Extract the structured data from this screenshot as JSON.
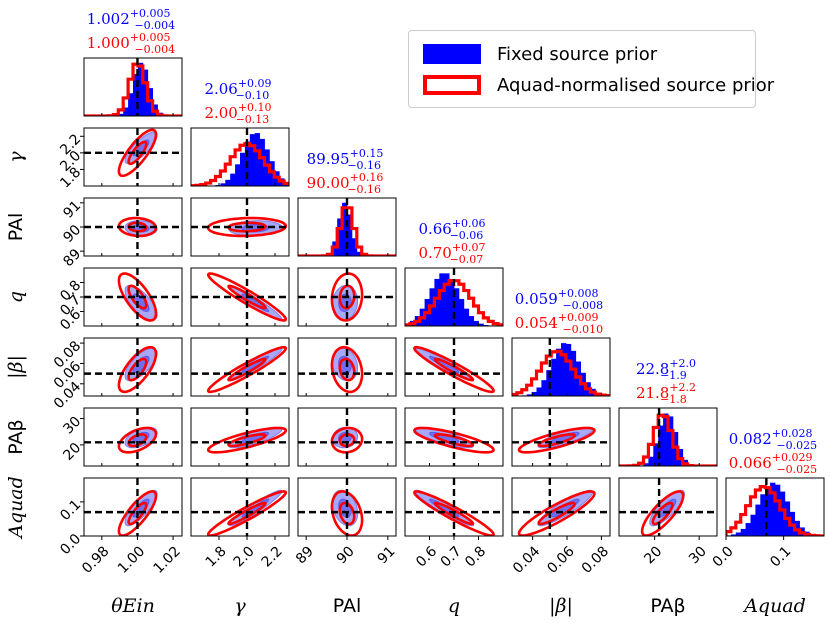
{
  "chart_data": {
    "type": "corner",
    "title": "",
    "parameters": [
      {
        "key": "theta_E",
        "label": "θEin",
        "range": [
          0.97,
          1.025
        ],
        "ticks": [
          0.98,
          1.0,
          1.02
        ],
        "tick_labels": [
          "0.98",
          "1.00",
          "1.02"
        ],
        "truth": 1.0,
        "series": {
          "fixed": {
            "median": 1.002,
            "plus": 0.005,
            "minus": 0.004,
            "sigma": 0.0045
          },
          "aquad": {
            "median": 1.0,
            "plus": 0.005,
            "minus": 0.004,
            "sigma": 0.0045
          }
        },
        "title_fixed": {
          "value": "1.002",
          "plus": "+0.005",
          "minus": "−0.004"
        },
        "title_aquad": {
          "value": "1.000",
          "plus": "+0.005",
          "minus": "−0.004"
        }
      },
      {
        "key": "gamma",
        "label": "γ",
        "range": [
          1.6,
          2.3
        ],
        "ticks": [
          1.8,
          2.0,
          2.2
        ],
        "tick_labels": [
          "1.8",
          "2.0",
          "2.2"
        ],
        "truth": 2.0,
        "series": {
          "fixed": {
            "median": 2.06,
            "plus": 0.09,
            "minus": 0.1,
            "sigma": 0.095
          },
          "aquad": {
            "median": 2.0,
            "plus": 0.1,
            "minus": 0.13,
            "sigma": 0.12
          }
        },
        "title_fixed": {
          "value": "2.06",
          "plus": "+0.09",
          "minus": "−0.10"
        },
        "title_aquad": {
          "value": "2.00",
          "plus": "+0.10",
          "minus": "−0.13"
        }
      },
      {
        "key": "PA_l",
        "label": "PAl",
        "range": [
          88.8,
          91.2
        ],
        "ticks": [
          89,
          90,
          91
        ],
        "tick_labels": [
          "89",
          "90",
          "91"
        ],
        "truth": 90.0,
        "series": {
          "fixed": {
            "median": 89.95,
            "plus": 0.15,
            "minus": 0.16,
            "sigma": 0.155
          },
          "aquad": {
            "median": 90.0,
            "plus": 0.16,
            "minus": 0.16,
            "sigma": 0.16
          }
        },
        "title_fixed": {
          "value": "89.95",
          "plus": "+0.15",
          "minus": "−0.16"
        },
        "title_aquad": {
          "value": "90.00",
          "plus": "+0.16",
          "minus": "−0.16"
        }
      },
      {
        "key": "q",
        "label": "q",
        "range": [
          0.5,
          0.9
        ],
        "ticks": [
          0.6,
          0.7,
          0.8
        ],
        "tick_labels": [
          "0.6",
          "0.7",
          "0.8"
        ],
        "truth": 0.7,
        "series": {
          "fixed": {
            "median": 0.66,
            "plus": 0.06,
            "minus": 0.06,
            "sigma": 0.06
          },
          "aquad": {
            "median": 0.7,
            "plus": 0.07,
            "minus": 0.07,
            "sigma": 0.07
          }
        },
        "title_fixed": {
          "value": "0.66",
          "plus": "+0.06",
          "minus": "−0.06"
        },
        "title_aquad": {
          "value": "0.70",
          "plus": "+0.07",
          "minus": "−0.07"
        }
      },
      {
        "key": "beta",
        "label": "|β|",
        "range": [
          0.028,
          0.085
        ],
        "ticks": [
          0.04,
          0.06,
          0.08
        ],
        "tick_labels": [
          "0.04",
          "0.06",
          "0.08"
        ],
        "truth": 0.05,
        "series": {
          "fixed": {
            "median": 0.059,
            "plus": 0.008,
            "minus": 0.008,
            "sigma": 0.008
          },
          "aquad": {
            "median": 0.054,
            "plus": 0.009,
            "minus": 0.01,
            "sigma": 0.0095
          }
        },
        "title_fixed": {
          "value": "0.059",
          "plus": "+0.008",
          "minus": "−0.008"
        },
        "title_aquad": {
          "value": "0.054",
          "plus": "+0.009",
          "minus": "−0.010"
        }
      },
      {
        "key": "PA_beta",
        "label": "PAβ",
        "range": [
          12,
          34
        ],
        "ticks": [
          20,
          30
        ],
        "tick_labels": [
          "20",
          "30"
        ],
        "truth": 21.0,
        "series": {
          "fixed": {
            "median": 22.8,
            "plus": 2.0,
            "minus": 1.9,
            "sigma": 1.95
          },
          "aquad": {
            "median": 21.8,
            "plus": 2.2,
            "minus": 1.8,
            "sigma": 2.0
          }
        },
        "title_fixed": {
          "value": "22.8",
          "plus": "+2.0",
          "minus": "−1.9"
        },
        "title_aquad": {
          "value": "21.8",
          "plus": "+2.2",
          "minus": "−1.8"
        }
      },
      {
        "key": "A_quad",
        "label": "Aquad",
        "range": [
          0.0,
          0.17
        ],
        "ticks": [
          0.0,
          0.1
        ],
        "tick_labels": [
          "0.0",
          "0.1"
        ],
        "truth": 0.07,
        "series": {
          "fixed": {
            "median": 0.082,
            "plus": 0.028,
            "minus": 0.025,
            "sigma": 0.026
          },
          "aquad": {
            "median": 0.066,
            "plus": 0.029,
            "minus": 0.025,
            "sigma": 0.028
          }
        },
        "title_fixed": {
          "value": "0.082",
          "plus": "+0.028",
          "minus": "−0.025"
        },
        "title_aquad": {
          "value": "0.066",
          "plus": "+0.029",
          "minus": "−0.025"
        }
      }
    ],
    "row_labels": [
      "γ",
      "PAl",
      "q",
      "|β|",
      "PAβ",
      "Aquad"
    ],
    "correlations": [
      [
        0,
        1,
        0.8
      ],
      [
        0,
        2,
        -0.1
      ],
      [
        0,
        3,
        -0.7
      ],
      [
        0,
        4,
        0.7
      ],
      [
        0,
        5,
        0.5
      ],
      [
        0,
        6,
        0.8
      ],
      [
        1,
        2,
        0.1
      ],
      [
        1,
        3,
        -0.95
      ],
      [
        1,
        4,
        0.95
      ],
      [
        1,
        5,
        0.8
      ],
      [
        1,
        6,
        0.95
      ],
      [
        2,
        3,
        0.1
      ],
      [
        2,
        4,
        -0.2
      ],
      [
        2,
        5,
        0.1
      ],
      [
        2,
        6,
        -0.3
      ],
      [
        3,
        4,
        -0.95
      ],
      [
        3,
        5,
        -0.8
      ],
      [
        3,
        6,
        -0.95
      ],
      [
        4,
        5,
        0.8
      ],
      [
        4,
        6,
        0.9
      ],
      [
        5,
        6,
        0.8
      ]
    ],
    "legend": [
      {
        "name": "Fixed source prior",
        "style": "filled",
        "color": "#0000ff"
      },
      {
        "name": "Aquad-normalised source prior",
        "style": "outline",
        "color": "#ff0000"
      }
    ],
    "legend_position": "top-right"
  }
}
